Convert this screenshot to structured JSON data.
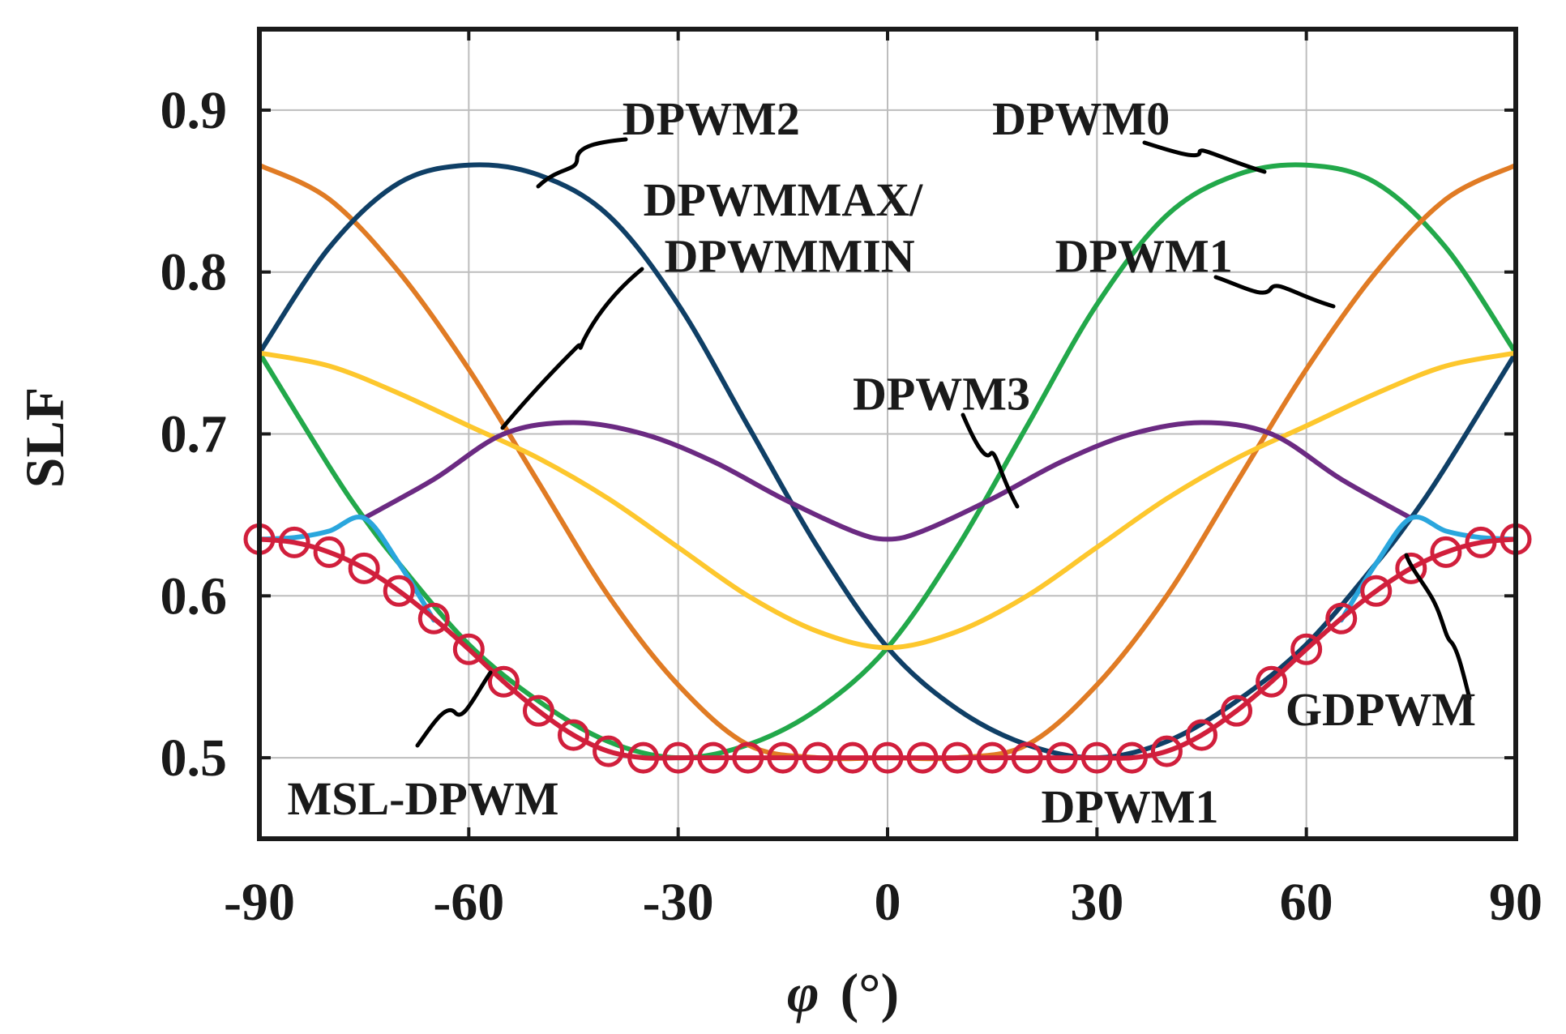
{
  "chart_data": {
    "type": "line",
    "title": "",
    "xlabel_symbol": "φ",
    "xlabel_unit": "(°)",
    "ylabel": "SLF",
    "xlim": [
      -90,
      90
    ],
    "ylim": [
      0.45,
      0.95
    ],
    "xticks": [
      -90,
      -60,
      -30,
      0,
      30,
      60,
      90
    ],
    "xtick_labels": [
      "-90",
      "-60",
      "-30",
      "0",
      "30",
      "60",
      "90"
    ],
    "yticks": [
      0.5,
      0.6,
      0.7,
      0.8,
      0.9
    ],
    "ytick_labels": [
      "0.5",
      "0.6",
      "0.7",
      "0.8",
      "0.9"
    ],
    "grid": true,
    "series": [
      {
        "name": "DPWM0",
        "color": "#22a84a",
        "x": [
          -90,
          -80,
          -75,
          -70,
          -60,
          -50,
          -40,
          -30,
          -20,
          -10,
          0,
          10,
          20,
          30,
          40,
          50,
          60,
          70,
          80,
          90
        ],
        "y": [
          0.75,
          0.68,
          0.648,
          0.62,
          0.57,
          0.535,
          0.51,
          0.5,
          0.508,
          0.53,
          0.568,
          0.63,
          0.705,
          0.78,
          0.835,
          0.86,
          0.866,
          0.855,
          0.815,
          0.75
        ]
      },
      {
        "name": "DPWM1",
        "color": "#e07b24",
        "x": [
          -90,
          -80,
          -70,
          -60,
          -50,
          -40,
          -30,
          -20,
          -10,
          0,
          10,
          20,
          30,
          40,
          50,
          60,
          70,
          80,
          90
        ],
        "y": [
          0.866,
          0.845,
          0.8,
          0.74,
          0.67,
          0.6,
          0.545,
          0.508,
          0.5,
          0.5,
          0.5,
          0.508,
          0.545,
          0.6,
          0.67,
          0.74,
          0.8,
          0.845,
          0.866
        ]
      },
      {
        "name": "DPWM2",
        "color": "#0f3f66",
        "x": [
          -90,
          -80,
          -70,
          -60,
          -50,
          -40,
          -30,
          -20,
          -10,
          0,
          10,
          20,
          30,
          40,
          50,
          60,
          70,
          75,
          80,
          90
        ],
        "y": [
          0.75,
          0.815,
          0.855,
          0.866,
          0.86,
          0.835,
          0.78,
          0.705,
          0.63,
          0.568,
          0.53,
          0.508,
          0.5,
          0.51,
          0.535,
          0.57,
          0.62,
          0.648,
          0.68,
          0.75
        ]
      },
      {
        "name": "DPWMMAX/DPWMMIN",
        "color": "#fdc72d",
        "x": [
          -90,
          -80,
          -70,
          -60,
          -50,
          -40,
          -30,
          -20,
          -10,
          0,
          10,
          20,
          30,
          40,
          50,
          60,
          70,
          80,
          90
        ],
        "y": [
          0.75,
          0.742,
          0.725,
          0.705,
          0.685,
          0.66,
          0.63,
          0.6,
          0.578,
          0.568,
          0.578,
          0.6,
          0.63,
          0.66,
          0.685,
          0.705,
          0.725,
          0.742,
          0.75
        ]
      },
      {
        "name": "DPWM3",
        "color": "#6b2a82",
        "x": [
          -75,
          -65,
          -55,
          -45,
          -35,
          -25,
          -15,
          -5,
          0,
          5,
          15,
          25,
          35,
          45,
          55,
          65,
          75
        ],
        "y": [
          0.648,
          0.672,
          0.7,
          0.707,
          0.7,
          0.683,
          0.66,
          0.64,
          0.635,
          0.64,
          0.66,
          0.683,
          0.7,
          0.707,
          0.7,
          0.672,
          0.648
        ]
      },
      {
        "name": "GDPWM",
        "color": "#2aa6dd",
        "x": [
          -90,
          -85,
          -80,
          -75,
          -70,
          -65,
          65,
          70,
          75,
          80,
          85,
          90
        ],
        "y": [
          0.635,
          0.636,
          0.64,
          0.648,
          0.62,
          0.585,
          0.585,
          0.62,
          0.648,
          0.64,
          0.636,
          0.635
        ]
      },
      {
        "name": "MSL-DPWM",
        "color": "#d11f3c",
        "marker": "circle",
        "x": [
          -90,
          -85,
          -80,
          -75,
          -70,
          -65,
          -60,
          -55,
          -50,
          -45,
          -40,
          -35,
          -30,
          -25,
          -20,
          -15,
          -10,
          -5,
          0,
          5,
          10,
          15,
          20,
          25,
          30,
          35,
          40,
          45,
          50,
          55,
          60,
          65,
          70,
          75,
          80,
          85,
          90
        ],
        "y": [
          0.635,
          0.633,
          0.627,
          0.617,
          0.603,
          0.586,
          0.567,
          0.547,
          0.529,
          0.514,
          0.504,
          0.5,
          0.5,
          0.5,
          0.5,
          0.5,
          0.5,
          0.5,
          0.5,
          0.5,
          0.5,
          0.5,
          0.5,
          0.5,
          0.5,
          0.5,
          0.504,
          0.514,
          0.529,
          0.547,
          0.567,
          0.586,
          0.603,
          0.617,
          0.627,
          0.633,
          0.635
        ]
      }
    ],
    "annotations": [
      {
        "text": "DPWM2",
        "x": -38,
        "y": 0.885
      },
      {
        "text": "DPWM0",
        "x": 15,
        "y": 0.885
      },
      {
        "text": "DPWMMAX/",
        "x": -35,
        "y": 0.835
      },
      {
        "text": "DPWMMIN",
        "x": -32,
        "y": 0.8
      },
      {
        "text": "DPWM1",
        "x": 24,
        "y": 0.8
      },
      {
        "text": "DPWM3",
        "x": -5,
        "y": 0.715
      },
      {
        "text": "MSL-DPWM",
        "x": -86,
        "y": 0.465
      },
      {
        "text": "DPWM1",
        "x": 22,
        "y": 0.46
      },
      {
        "text": "GDPWM",
        "x": 57,
        "y": 0.52
      }
    ]
  }
}
